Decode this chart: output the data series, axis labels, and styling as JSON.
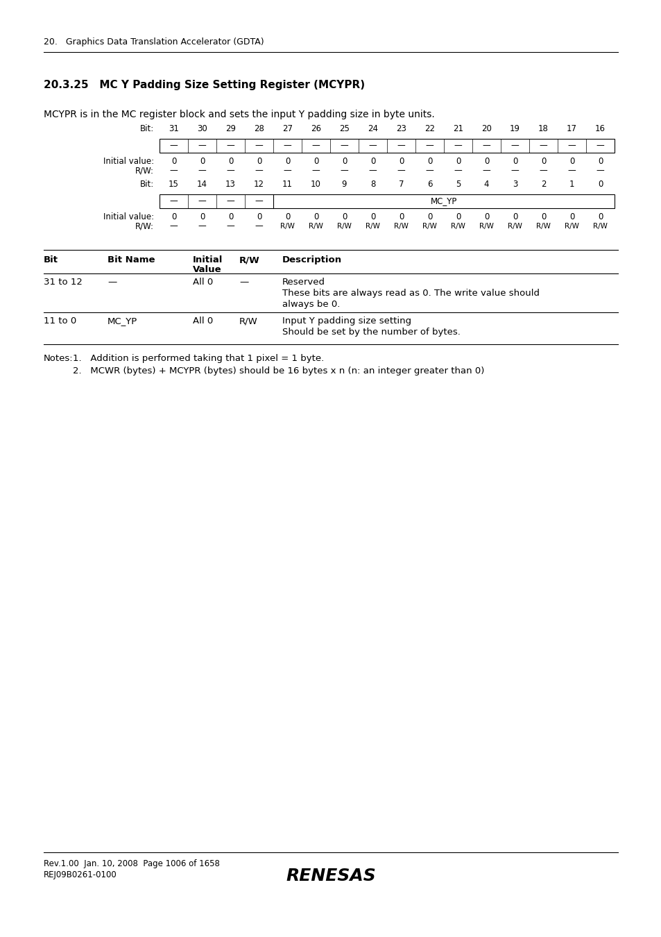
{
  "page_header": "20.   Graphics Data Translation Accelerator (GDTA)",
  "section_title": "20.3.25   MC Y Padding Size Setting Register (MCYPR)",
  "description": "MCYPR is in the MC register block and sets the input Y padding size in byte units.",
  "bg_color": "#ffffff",
  "text_color": "#000000",
  "register_row1": {
    "bit_label": "Bit:",
    "bits": [
      "31",
      "30",
      "29",
      "28",
      "27",
      "26",
      "25",
      "24",
      "23",
      "22",
      "21",
      "20",
      "19",
      "18",
      "17",
      "16"
    ],
    "cell_content": [
      "—",
      "—",
      "—",
      "—",
      "—",
      "—",
      "—",
      "—",
      "—",
      "—",
      "—",
      "—",
      "—",
      "—",
      "—",
      "—"
    ],
    "initial_values": [
      "0",
      "0",
      "0",
      "0",
      "0",
      "0",
      "0",
      "0",
      "0",
      "0",
      "0",
      "0",
      "0",
      "0",
      "0",
      "0"
    ],
    "rw_values": [
      "—",
      "—",
      "—",
      "—",
      "—",
      "—",
      "—",
      "—",
      "—",
      "—",
      "—",
      "—",
      "—",
      "—",
      "—",
      "—"
    ]
  },
  "register_row2": {
    "bit_label": "Bit:",
    "bits": [
      "15",
      "14",
      "13",
      "12",
      "11",
      "10",
      "9",
      "8",
      "7",
      "6",
      "5",
      "4",
      "3",
      "2",
      "1",
      "0"
    ],
    "cell_content_left": [
      "—",
      "—",
      "—",
      "—"
    ],
    "cell_content_span": "MC_YP",
    "initial_values": [
      "0",
      "0",
      "0",
      "0",
      "0",
      "0",
      "0",
      "0",
      "0",
      "0",
      "0",
      "0",
      "0",
      "0",
      "0",
      "0"
    ],
    "rw_values_left": [
      "—",
      "—",
      "—",
      "—"
    ],
    "rw_values_right": [
      "R/W",
      "R/W",
      "R/W",
      "R/W",
      "R/W",
      "R/W",
      "R/W",
      "R/W",
      "R/W",
      "R/W",
      "R/W",
      "R/W"
    ]
  },
  "table_rows": [
    {
      "bit": "31 to 12",
      "bit_name": "—",
      "initial_value": "All 0",
      "rw": "—",
      "desc1": "Reserved",
      "desc2": "These bits are always read as 0. The write value should",
      "desc3": "always be 0."
    },
    {
      "bit": "11 to 0",
      "bit_name": "MC_YP",
      "initial_value": "All 0",
      "rw": "R/W",
      "desc1": "Input Y padding size setting",
      "desc2": "Should be set by the number of bytes.",
      "desc3": ""
    }
  ],
  "note1": "1.   Addition is performed taking that 1 pixel = 1 byte.",
  "note2": "2.   MCWR (bytes) + MCYPR (bytes) should be 16 bytes x n (n: an integer greater than 0)",
  "footer_left1": "Rev.1.00  Jan. 10, 2008  Page 1006 of 1658",
  "footer_left2": "REJ09B0261-0100",
  "footer_logo": "RENESAS"
}
